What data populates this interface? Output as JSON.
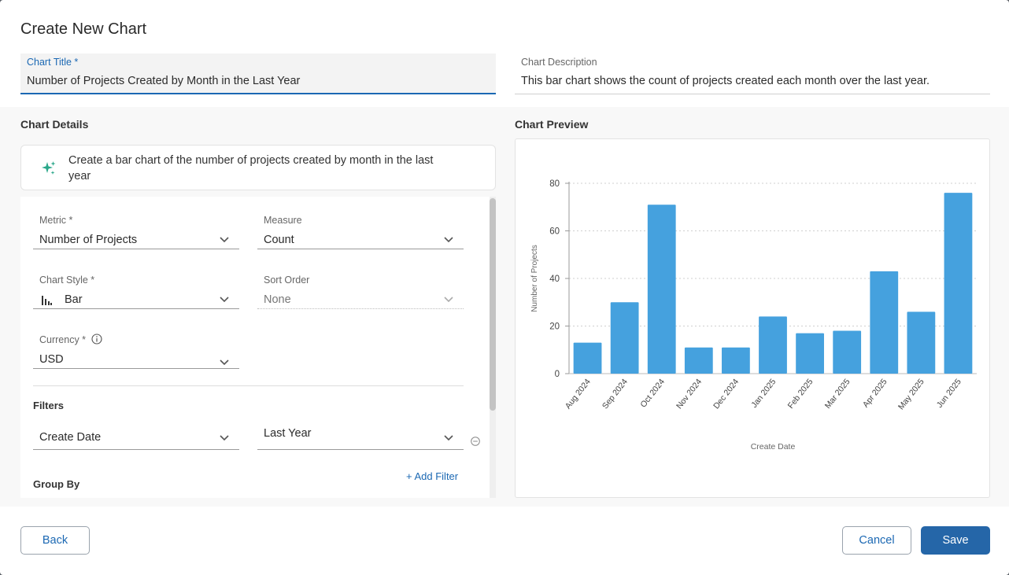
{
  "dialog": {
    "title": "Create New Chart"
  },
  "chart_title_field": {
    "label": "Chart Title *",
    "value": "Number of Projects Created by Month in the Last Year"
  },
  "chart_description_field": {
    "label": "Chart Description",
    "value": "This bar chart shows the count of projects created each month over the last year."
  },
  "details": {
    "heading": "Chart Details",
    "prompt": "Create a bar chart of the number of projects created by month in the last year",
    "metric": {
      "label": "Metric *",
      "value": "Number of Projects"
    },
    "measure": {
      "label": "Measure",
      "value": "Count"
    },
    "chart_style": {
      "label": "Chart Style *",
      "value": "Bar",
      "icon": "bar-chart-icon"
    },
    "sort_order": {
      "label": "Sort Order",
      "value": "None"
    },
    "currency": {
      "label": "Currency *",
      "value": "USD",
      "info_icon": "info-icon"
    },
    "filters": {
      "heading": "Filters",
      "field": "Create Date",
      "value": "Last Year",
      "add_label": "+ Add Filter"
    },
    "group_by": {
      "heading": "Group By"
    }
  },
  "preview": {
    "heading": "Chart Preview"
  },
  "chart_data": {
    "type": "bar",
    "categories": [
      "Aug 2024",
      "Sep 2024",
      "Oct 2024",
      "Nov 2024",
      "Dec 2024",
      "Jan 2025",
      "Feb 2025",
      "Mar 2025",
      "Apr 2025",
      "May 2025",
      "Jun 2025"
    ],
    "values": [
      13,
      30,
      71,
      11,
      11,
      24,
      17,
      18,
      43,
      26,
      76
    ],
    "xlabel": "Create Date",
    "ylabel": "Number of Projects",
    "ylim": [
      0,
      80
    ],
    "yticks": [
      0,
      20,
      40,
      60,
      80
    ],
    "grid": true,
    "bar_color": "#45a1de"
  },
  "footer": {
    "back_label": "Back",
    "cancel_label": "Cancel",
    "save_label": "Save"
  },
  "colors": {
    "accent": "#1b68b3",
    "primary_button": "#2566a8",
    "sparkle": "#2aa78a"
  }
}
